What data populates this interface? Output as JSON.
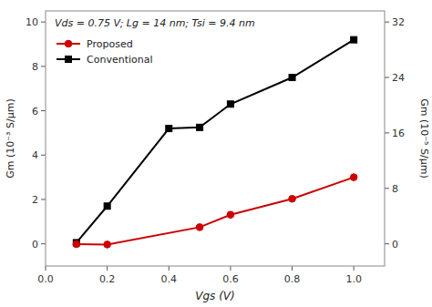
{
  "chart_data": {
    "type": "line",
    "annotation": "Vds = 0.75 V; Lg = 14 nm; Tsi = 9.4 nm",
    "xlabel": "Vgs (V)",
    "ylabel": "Gm (10⁻³ S/μm)",
    "y2label": "Gm (10⁻⁵ S/μm)",
    "xlim": [
      0.0,
      1.1
    ],
    "xticks": [
      {
        "value": 0.0,
        "label": "0.0"
      },
      0.2,
      0.4,
      0.6,
      0.8,
      {
        "value": 1.0,
        "label": "1.0"
      }
    ],
    "ylim": [
      -1.0,
      10.5
    ],
    "yticks": [
      0,
      2,
      4,
      6,
      8,
      10
    ],
    "y2lim": [
      -3.2,
      33.6
    ],
    "y2ticks": [
      0,
      8,
      16,
      24,
      32
    ],
    "legend": "upper left",
    "grid": false,
    "series": [
      {
        "name": "Proposed",
        "color": "#cc0000",
        "marker": "circle",
        "line_style": "solid",
        "axis": "y2",
        "x": [
          0.1,
          0.2,
          0.5,
          0.6,
          0.8,
          1.0
        ],
        "values": [
          -0.05,
          -0.1,
          2.4,
          4.2,
          6.5,
          9.6
        ]
      },
      {
        "name": "Conventional",
        "color": "#000000",
        "marker": "square",
        "line_style": "solid",
        "axis": "y",
        "x": [
          0.1,
          0.2,
          0.4,
          0.5,
          0.6,
          0.8,
          1.0
        ],
        "values": [
          0.05,
          1.7,
          5.2,
          5.25,
          6.3,
          7.5,
          9.2
        ]
      }
    ]
  }
}
